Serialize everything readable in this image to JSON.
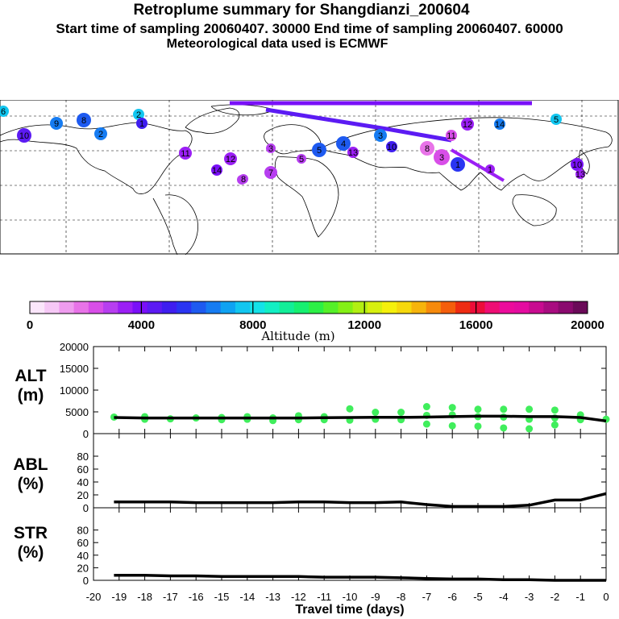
{
  "title": {
    "line1": "Retroplume summary for Shangdianzi_200604",
    "line2": "Start time of sampling 20060407. 30000     End time of sampling 20060407. 60000",
    "line3": "Meteorological data used is ECMWF"
  },
  "colorbar": {
    "label": "Altitude (m)",
    "ticks": [
      "0",
      "4000",
      "8000",
      "12000",
      "16000",
      "20000"
    ],
    "colors": [
      "#fbe6fb",
      "#f6c8f6",
      "#ef9cef",
      "#e873e8",
      "#d84ee8",
      "#b73ef0",
      "#9b1ff5",
      "#7a10f8",
      "#5c1bf3",
      "#3f1ef0",
      "#2a35f2",
      "#1e5af0",
      "#167cf2",
      "#0fa2f2",
      "#12c6f0",
      "#14e2e8",
      "#12efc4",
      "#12ee98",
      "#16f070",
      "#2cf046",
      "#55f028",
      "#84f015",
      "#b2ef12",
      "#d7f00f",
      "#f5f00c",
      "#f6d80c",
      "#f6b40c",
      "#f68a0c",
      "#f45e0c",
      "#ee2c12",
      "#ec0d3a",
      "#ee0e74",
      "#ec0c9c",
      "#e40ca0",
      "#c80c90",
      "#a80c80",
      "#8a0a6e",
      "#6a0a58"
    ]
  },
  "axes": {
    "alt_label": "ALT\n(m)",
    "abl_label": "ABL\n(%)",
    "str_label": "STR\n(%)",
    "xlabel": "Travel time (days)",
    "xticks": [
      "-20",
      "-19",
      "-18",
      "-17",
      "-16",
      "-15",
      "-14",
      "-13",
      "-12",
      "-11",
      "-10",
      "-9",
      "-8",
      "-7",
      "-6",
      "-5",
      "-4",
      "-3",
      "-2",
      "-1",
      "0"
    ],
    "alt_yticks": [
      "20000",
      "15000",
      "10000",
      "5000",
      "0"
    ],
    "pct_yticks": [
      "80",
      "60",
      "40",
      "20",
      "0"
    ]
  },
  "chart_data": [
    {
      "type": "line",
      "name": "altitude",
      "title": "ALT (m)",
      "ylim": [
        0,
        20000
      ],
      "xlim": [
        -20,
        0
      ],
      "x": [
        -19.2,
        -18,
        -17,
        -16,
        -15,
        -14,
        -13,
        -12,
        -11,
        -10,
        -9,
        -8,
        -7,
        -6,
        -5,
        -4,
        -3,
        -2,
        -1,
        0
      ],
      "values": [
        3700,
        3600,
        3600,
        3600,
        3600,
        3600,
        3600,
        3600,
        3650,
        3700,
        3750,
        3750,
        3800,
        3900,
        4000,
        4000,
        3900,
        3900,
        3700,
        2900
      ],
      "cluster_points": [
        {
          "x": -19.2,
          "y": 3800
        },
        {
          "x": -18,
          "y": 3900
        },
        {
          "x": -18,
          "y": 3300
        },
        {
          "x": -17,
          "y": 3400
        },
        {
          "x": -16,
          "y": 3600
        },
        {
          "x": -15,
          "y": 3700
        },
        {
          "x": -15,
          "y": 3200
        },
        {
          "x": -14,
          "y": 3900
        },
        {
          "x": -14,
          "y": 3300
        },
        {
          "x": -13,
          "y": 3600
        },
        {
          "x": -13,
          "y": 3000
        },
        {
          "x": -12,
          "y": 4100
        },
        {
          "x": -12,
          "y": 3200
        },
        {
          "x": -11,
          "y": 3900
        },
        {
          "x": -11,
          "y": 3200
        },
        {
          "x": -10,
          "y": 5700
        },
        {
          "x": -10,
          "y": 3100
        },
        {
          "x": -9,
          "y": 4900
        },
        {
          "x": -9,
          "y": 3300
        },
        {
          "x": -8,
          "y": 4900
        },
        {
          "x": -8,
          "y": 3200
        },
        {
          "x": -7,
          "y": 6200
        },
        {
          "x": -7,
          "y": 4200
        },
        {
          "x": -7,
          "y": 2200
        },
        {
          "x": -6,
          "y": 6000
        },
        {
          "x": -6,
          "y": 4300
        },
        {
          "x": -6,
          "y": 1800
        },
        {
          "x": -5,
          "y": 5600
        },
        {
          "x": -5,
          "y": 3900
        },
        {
          "x": -5,
          "y": 1700
        },
        {
          "x": -4,
          "y": 5600
        },
        {
          "x": -4,
          "y": 3800
        },
        {
          "x": -4,
          "y": 1300
        },
        {
          "x": -3,
          "y": 5600
        },
        {
          "x": -3,
          "y": 3300
        },
        {
          "x": -3,
          "y": 1100
        },
        {
          "x": -2,
          "y": 5400
        },
        {
          "x": -2,
          "y": 3600
        },
        {
          "x": -2,
          "y": 2000
        },
        {
          "x": -1,
          "y": 4300
        },
        {
          "x": -1,
          "y": 3200
        },
        {
          "x": 0,
          "y": 3300
        }
      ]
    },
    {
      "type": "line",
      "name": "abl",
      "title": "ABL (%)",
      "ylim": [
        0,
        100
      ],
      "xlim": [
        -20,
        0
      ],
      "x": [
        -19.2,
        -18,
        -17,
        -16,
        -15,
        -14,
        -13,
        -12,
        -11,
        -10,
        -9,
        -8,
        -7,
        -6,
        -5,
        -4,
        -3,
        -2,
        -1,
        0
      ],
      "values": [
        9,
        9,
        9,
        8,
        8,
        8,
        8,
        9,
        9,
        8,
        8,
        9,
        5,
        2,
        2,
        2,
        4,
        12,
        12,
        22
      ]
    },
    {
      "type": "line",
      "name": "str",
      "title": "STR (%)",
      "ylim": [
        0,
        100
      ],
      "xlim": [
        -20,
        0
      ],
      "x": [
        -19.2,
        -18,
        -17,
        -16,
        -15,
        -14,
        -13,
        -12,
        -11,
        -10,
        -9,
        -8,
        -7,
        -6,
        -5,
        -4,
        -3,
        -2,
        -1,
        0
      ],
      "values": [
        8,
        8,
        7,
        7,
        6,
        6,
        6,
        6,
        5,
        5,
        5,
        4,
        3,
        2,
        2,
        1,
        1,
        0,
        0,
        0
      ]
    }
  ],
  "map": {
    "clusters": [
      {
        "label": "6",
        "color": "#12c6f0"
      },
      {
        "label": "2",
        "color": "#12c6f0"
      },
      {
        "label": "9",
        "color": "#167cf2"
      },
      {
        "label": "8",
        "color": "#1e5af0"
      },
      {
        "label": "10",
        "color": "#5c1bf3"
      },
      {
        "label": "1",
        "color": "#3f1ef0"
      },
      {
        "label": "11",
        "color": "#9b1ff5"
      },
      {
        "label": "12",
        "color": "#9b1ff5"
      },
      {
        "label": "14",
        "color": "#7a10f8"
      },
      {
        "label": "3",
        "color": "#b73ef0"
      },
      {
        "label": "7",
        "color": "#b73ef0"
      },
      {
        "label": "8",
        "color": "#b73ef0"
      },
      {
        "label": "5",
        "color": "#1e5af0"
      },
      {
        "label": "4",
        "color": "#1e5af0"
      },
      {
        "label": "13",
        "color": "#9b1ff5"
      },
      {
        "label": "5",
        "color": "#b73ef0"
      },
      {
        "label": "3",
        "color": "#167cf2"
      },
      {
        "label": "10",
        "color": "#3f1ef0"
      },
      {
        "label": "8",
        "color": "#e873e8"
      },
      {
        "label": "3",
        "color": "#d84ee8"
      },
      {
        "label": "1",
        "color": "#2a35f2"
      },
      {
        "label": "11",
        "color": "#d84ee8"
      },
      {
        "label": "12",
        "color": "#9b1ff5"
      },
      {
        "label": "14",
        "color": "#167cf2"
      },
      {
        "label": "5",
        "color": "#12c6f0"
      },
      {
        "label": "2",
        "color": "#167cf2"
      },
      {
        "label": "1",
        "color": "#9b1ff5"
      },
      {
        "label": "10",
        "color": "#7a10f8"
      },
      {
        "label": "13",
        "color": "#9b1ff5"
      },
      {
        "label": "8",
        "color": "#b73ef0"
      }
    ]
  }
}
